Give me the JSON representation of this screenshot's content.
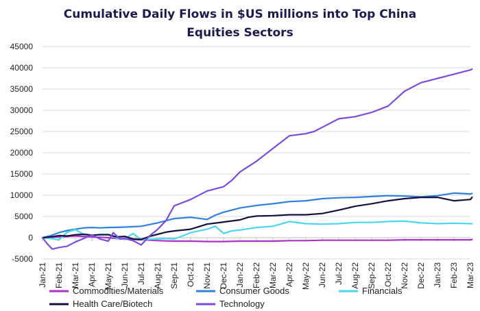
{
  "chart_data": {
    "type": "line",
    "title_line1": "Cumulative Daily Flows in $US millions into Top China",
    "title_line2": "Equities Sectors",
    "xlabel": "",
    "ylabel": "",
    "ylim": [
      -5000,
      45000
    ],
    "y_ticks": [
      "45000",
      "40000",
      "35000",
      "30000",
      "25000",
      "20000",
      "15000",
      "10000",
      "5000",
      "0",
      "-5000"
    ],
    "x_tick_labels": [
      "Jan-21",
      "Feb-21",
      "Mar-21",
      "Apr-21",
      "May-21",
      "Jun-21",
      "Jul-21",
      "Aug-21",
      "Sep-21",
      "Oct-21",
      "Nov-21",
      "Dec-21",
      "Jan-22",
      "Feb-22",
      "Mar-22",
      "Apr-22",
      "May-22",
      "Jun-22",
      "Jul-22",
      "Aug-22",
      "Sep-22",
      "Oct-22",
      "Nov-22",
      "Dec-22",
      "Jan-23",
      "Feb-23",
      "Mar-23"
    ],
    "grid": true,
    "legend_position": "bottom",
    "series": [
      {
        "name": "Commodities/Materials",
        "color": "#b02fc9",
        "points": [
          [
            0,
            0
          ],
          [
            0.5,
            100
          ],
          [
            1,
            200
          ],
          [
            1.5,
            300
          ],
          [
            2,
            400
          ],
          [
            2.5,
            300
          ],
          [
            3,
            200
          ],
          [
            3.5,
            100
          ],
          [
            4,
            0
          ],
          [
            4.5,
            -200
          ],
          [
            5,
            -300
          ],
          [
            5.5,
            -400
          ],
          [
            6,
            -500
          ],
          [
            6.5,
            -600
          ],
          [
            7,
            -700
          ],
          [
            8,
            -800
          ],
          [
            9,
            -800
          ],
          [
            10,
            -900
          ],
          [
            11,
            -900
          ],
          [
            12,
            -800
          ],
          [
            13,
            -800
          ],
          [
            14,
            -800
          ],
          [
            15,
            -700
          ],
          [
            16,
            -700
          ],
          [
            17,
            -600
          ],
          [
            18,
            -600
          ],
          [
            19,
            -600
          ],
          [
            20,
            -600
          ],
          [
            21,
            -600
          ],
          [
            22,
            -500
          ],
          [
            23,
            -500
          ],
          [
            24,
            -500
          ],
          [
            25,
            -500
          ],
          [
            26,
            -500
          ],
          [
            26.1,
            -400
          ]
        ]
      },
      {
        "name": "Consumer Goods",
        "color": "#2f7fe0",
        "points": [
          [
            0,
            0
          ],
          [
            0.5,
            500
          ],
          [
            1,
            1200
          ],
          [
            1.5,
            1700
          ],
          [
            2,
            2000
          ],
          [
            2.5,
            2300
          ],
          [
            3,
            2400
          ],
          [
            3.5,
            2300
          ],
          [
            4,
            2400
          ],
          [
            5,
            2500
          ],
          [
            6,
            2700
          ],
          [
            7,
            3500
          ],
          [
            7.5,
            4000
          ],
          [
            8,
            4500
          ],
          [
            9,
            4800
          ],
          [
            10,
            4300
          ],
          [
            10.5,
            5300
          ],
          [
            11,
            6000
          ],
          [
            12,
            7000
          ],
          [
            13,
            7600
          ],
          [
            14,
            8000
          ],
          [
            15,
            8500
          ],
          [
            16,
            8700
          ],
          [
            17,
            9200
          ],
          [
            18,
            9400
          ],
          [
            19,
            9500
          ],
          [
            20,
            9700
          ],
          [
            21,
            9900
          ],
          [
            22,
            9800
          ],
          [
            23,
            9600
          ],
          [
            24,
            9900
          ],
          [
            25,
            10500
          ],
          [
            26,
            10300
          ],
          [
            26.1,
            10400
          ]
        ]
      },
      {
        "name": "Financials",
        "color": "#4ad6ee",
        "points": [
          [
            0,
            0
          ],
          [
            0.5,
            -200
          ],
          [
            1,
            -500
          ],
          [
            1.5,
            1300
          ],
          [
            2,
            1900
          ],
          [
            2.5,
            800
          ],
          [
            3,
            500
          ],
          [
            3.5,
            800
          ],
          [
            4,
            800
          ],
          [
            4.5,
            -100
          ],
          [
            5,
            -300
          ],
          [
            5.5,
            1000
          ],
          [
            6,
            -500
          ],
          [
            6.5,
            -400
          ],
          [
            7,
            -300
          ],
          [
            7.5,
            -200
          ],
          [
            8,
            -300
          ],
          [
            8.5,
            400
          ],
          [
            9,
            1200
          ],
          [
            10,
            2000
          ],
          [
            10.5,
            2700
          ],
          [
            11,
            1000
          ],
          [
            11.5,
            1600
          ],
          [
            12,
            1800
          ],
          [
            13,
            2400
          ],
          [
            14,
            2700
          ],
          [
            15,
            3800
          ],
          [
            16,
            3300
          ],
          [
            17,
            3200
          ],
          [
            18,
            3300
          ],
          [
            19,
            3600
          ],
          [
            20,
            3600
          ],
          [
            21,
            3800
          ],
          [
            22,
            3900
          ],
          [
            23,
            3500
          ],
          [
            24,
            3300
          ],
          [
            25,
            3400
          ],
          [
            26,
            3300
          ],
          [
            26.1,
            3300
          ]
        ]
      },
      {
        "name": "Health Care/Biotech",
        "color": "#16103d",
        "points": [
          [
            0,
            0
          ],
          [
            0.5,
            200
          ],
          [
            1,
            500
          ],
          [
            1.5,
            400
          ],
          [
            2,
            700
          ],
          [
            2.5,
            800
          ],
          [
            3,
            600
          ],
          [
            3.5,
            700
          ],
          [
            4,
            700
          ],
          [
            4.5,
            200
          ],
          [
            5,
            300
          ],
          [
            5.5,
            -300
          ],
          [
            6,
            -400
          ],
          [
            6.5,
            300
          ],
          [
            7,
            800
          ],
          [
            7.5,
            1300
          ],
          [
            8,
            1600
          ],
          [
            9,
            2000
          ],
          [
            10,
            3200
          ],
          [
            11,
            3700
          ],
          [
            12,
            4200
          ],
          [
            12.5,
            4800
          ],
          [
            13,
            5100
          ],
          [
            14,
            5200
          ],
          [
            15,
            5400
          ],
          [
            16,
            5400
          ],
          [
            17,
            5700
          ],
          [
            18,
            6500
          ],
          [
            19,
            7400
          ],
          [
            20,
            8000
          ],
          [
            21,
            8700
          ],
          [
            22,
            9200
          ],
          [
            23,
            9500
          ],
          [
            24,
            9500
          ],
          [
            25,
            8700
          ],
          [
            26,
            9000
          ],
          [
            26.1,
            9500
          ]
        ]
      },
      {
        "name": "Technology",
        "color": "#7a4be0",
        "points": [
          [
            0,
            0
          ],
          [
            0.3,
            -1500
          ],
          [
            0.6,
            -2700
          ],
          [
            1,
            -2300
          ],
          [
            1.5,
            -2000
          ],
          [
            2,
            -1000
          ],
          [
            2.5,
            -200
          ],
          [
            3,
            700
          ],
          [
            3.5,
            -300
          ],
          [
            4,
            -800
          ],
          [
            4.3,
            1200
          ],
          [
            4.7,
            -300
          ],
          [
            5,
            -200
          ],
          [
            5.5,
            -700
          ],
          [
            6,
            -1700
          ],
          [
            6.5,
            400
          ],
          [
            7,
            2000
          ],
          [
            7.5,
            4000
          ],
          [
            8,
            7500
          ],
          [
            9,
            9000
          ],
          [
            10,
            11000
          ],
          [
            11,
            12000
          ],
          [
            11.5,
            13500
          ],
          [
            12,
            15500
          ],
          [
            13,
            18000
          ],
          [
            14,
            21000
          ],
          [
            15,
            24000
          ],
          [
            16,
            24500
          ],
          [
            16.5,
            25000
          ],
          [
            17,
            26000
          ],
          [
            18,
            28000
          ],
          [
            19,
            28500
          ],
          [
            20,
            29500
          ],
          [
            21,
            31000
          ],
          [
            22,
            34500
          ],
          [
            23,
            36500
          ],
          [
            24,
            37500
          ],
          [
            25,
            38500
          ],
          [
            26,
            39500
          ],
          [
            26.1,
            39700
          ]
        ]
      }
    ]
  }
}
